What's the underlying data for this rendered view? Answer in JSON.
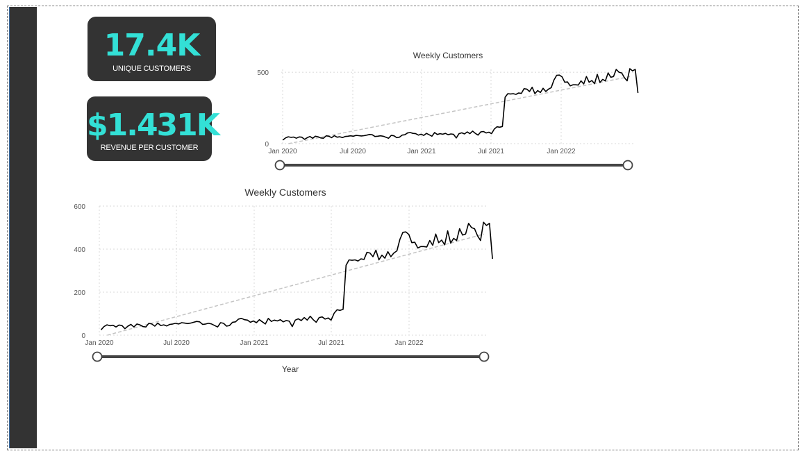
{
  "kpis": {
    "unique_customers": {
      "value": "17.4K",
      "label": "UNIQUE CUSTOMERS"
    },
    "revenue_per_customer": {
      "value": "$1.431K",
      "label": "REVENUE PER CUSTOMER"
    }
  },
  "colors": {
    "accent": "#33e0d6",
    "card_bg": "#333333",
    "sidebar": "#333333",
    "line": "#000000",
    "trend": "#c4c4c4"
  },
  "x_tick_labels": [
    "Jan 2020",
    "Jul 2020",
    "Jan 2021",
    "Jul 2021",
    "Jan 2022"
  ],
  "chart_data": [
    {
      "type": "line",
      "title": "Weekly Customers",
      "xlabel": "",
      "ylabel": "",
      "ylim": [
        0,
        520
      ],
      "yticks": [
        0,
        500
      ],
      "x_tick_labels": [
        "Jan 2020",
        "Jul 2020",
        "Jan 2021",
        "Jul 2021",
        "Jan 2022"
      ],
      "x_range": [
        "2020-01-01",
        "2022-06-30"
      ],
      "grid": true,
      "trend_line": {
        "start": [
          "2020-01-01",
          -10
        ],
        "end": [
          "2022-06-20",
          470
        ]
      },
      "slider": true
    },
    {
      "type": "line",
      "title": "Weekly Customers",
      "xlabel": "Year",
      "ylabel": "",
      "ylim": [
        0,
        600
      ],
      "yticks": [
        0,
        200,
        400,
        600
      ],
      "x_tick_labels": [
        "Jan 2020",
        "Jul 2020",
        "Jan 2021",
        "Jul 2021",
        "Jan 2022"
      ],
      "x_range": [
        "2020-01-01",
        "2022-06-30"
      ],
      "grid": true,
      "trend_line": {
        "start": [
          "2020-01-01",
          -10
        ],
        "end": [
          "2022-06-20",
          470
        ]
      },
      "slider": true
    }
  ],
  "weekly_customers": [
    [
      "2020-01-05",
      25
    ],
    [
      "2020-01-12",
      40
    ],
    [
      "2020-01-19",
      48
    ],
    [
      "2020-01-26",
      44
    ],
    [
      "2020-02-02",
      46
    ],
    [
      "2020-02-09",
      38
    ],
    [
      "2020-02-16",
      47
    ],
    [
      "2020-02-23",
      45
    ],
    [
      "2020-03-01",
      30
    ],
    [
      "2020-03-08",
      42
    ],
    [
      "2020-03-15",
      50
    ],
    [
      "2020-03-22",
      38
    ],
    [
      "2020-03-29",
      52
    ],
    [
      "2020-04-05",
      48
    ],
    [
      "2020-04-12",
      40
    ],
    [
      "2020-04-19",
      38
    ],
    [
      "2020-04-26",
      55
    ],
    [
      "2020-05-03",
      52
    ],
    [
      "2020-05-10",
      42
    ],
    [
      "2020-05-17",
      56
    ],
    [
      "2020-05-24",
      45
    ],
    [
      "2020-05-31",
      48
    ],
    [
      "2020-06-07",
      43
    ],
    [
      "2020-06-14",
      50
    ],
    [
      "2020-06-21",
      52
    ],
    [
      "2020-06-28",
      55
    ],
    [
      "2020-07-05",
      52
    ],
    [
      "2020-07-12",
      58
    ],
    [
      "2020-07-19",
      56
    ],
    [
      "2020-07-26",
      54
    ],
    [
      "2020-08-02",
      56
    ],
    [
      "2020-08-09",
      60
    ],
    [
      "2020-08-16",
      64
    ],
    [
      "2020-08-23",
      62
    ],
    [
      "2020-08-30",
      50
    ],
    [
      "2020-09-06",
      52
    ],
    [
      "2020-09-13",
      55
    ],
    [
      "2020-09-20",
      52
    ],
    [
      "2020-09-27",
      45
    ],
    [
      "2020-10-04",
      38
    ],
    [
      "2020-10-11",
      58
    ],
    [
      "2020-10-18",
      55
    ],
    [
      "2020-10-25",
      42
    ],
    [
      "2020-11-01",
      45
    ],
    [
      "2020-11-08",
      60
    ],
    [
      "2020-11-15",
      62
    ],
    [
      "2020-11-22",
      75
    ],
    [
      "2020-11-29",
      78
    ],
    [
      "2020-12-06",
      72
    ],
    [
      "2020-12-13",
      70
    ],
    [
      "2020-12-20",
      60
    ],
    [
      "2020-12-27",
      66
    ],
    [
      "2021-01-03",
      58
    ],
    [
      "2021-01-10",
      72
    ],
    [
      "2021-01-17",
      62
    ],
    [
      "2021-01-24",
      52
    ],
    [
      "2021-01-31",
      78
    ],
    [
      "2021-02-07",
      64
    ],
    [
      "2021-02-14",
      70
    ],
    [
      "2021-02-21",
      66
    ],
    [
      "2021-02-28",
      72
    ],
    [
      "2021-03-07",
      62
    ],
    [
      "2021-03-14",
      68
    ],
    [
      "2021-03-21",
      65
    ],
    [
      "2021-03-28",
      40
    ],
    [
      "2021-04-04",
      70
    ],
    [
      "2021-04-11",
      76
    ],
    [
      "2021-04-18",
      68
    ],
    [
      "2021-04-25",
      82
    ],
    [
      "2021-05-02",
      70
    ],
    [
      "2021-05-09",
      88
    ],
    [
      "2021-05-16",
      72
    ],
    [
      "2021-05-23",
      60
    ],
    [
      "2021-05-30",
      82
    ],
    [
      "2021-06-06",
      85
    ],
    [
      "2021-06-13",
      75
    ],
    [
      "2021-06-20",
      80
    ],
    [
      "2021-06-27",
      70
    ],
    [
      "2021-07-04",
      102
    ],
    [
      "2021-07-11",
      118
    ],
    [
      "2021-07-18",
      115
    ],
    [
      "2021-07-25",
      120
    ],
    [
      "2021-08-01",
      325
    ],
    [
      "2021-08-08",
      350
    ],
    [
      "2021-08-15",
      348
    ],
    [
      "2021-08-22",
      350
    ],
    [
      "2021-08-29",
      345
    ],
    [
      "2021-09-05",
      355
    ],
    [
      "2021-09-12",
      352
    ],
    [
      "2021-09-19",
      385
    ],
    [
      "2021-09-26",
      382
    ],
    [
      "2021-10-03",
      365
    ],
    [
      "2021-10-10",
      395
    ],
    [
      "2021-10-17",
      350
    ],
    [
      "2021-10-24",
      372
    ],
    [
      "2021-10-31",
      358
    ],
    [
      "2021-11-07",
      388
    ],
    [
      "2021-11-14",
      365
    ],
    [
      "2021-11-21",
      382
    ],
    [
      "2021-11-28",
      392
    ],
    [
      "2021-12-05",
      445
    ],
    [
      "2021-12-12",
      478
    ],
    [
      "2021-12-19",
      480
    ],
    [
      "2021-12-26",
      468
    ],
    [
      "2022-01-02",
      430
    ],
    [
      "2022-01-09",
      432
    ],
    [
      "2022-01-16",
      405
    ],
    [
      "2022-01-23",
      412
    ],
    [
      "2022-01-30",
      412
    ],
    [
      "2022-02-06",
      410
    ],
    [
      "2022-02-13",
      440
    ],
    [
      "2022-02-20",
      418
    ],
    [
      "2022-02-27",
      470
    ],
    [
      "2022-03-06",
      430
    ],
    [
      "2022-03-13",
      442
    ],
    [
      "2022-03-20",
      420
    ],
    [
      "2022-03-27",
      485
    ],
    [
      "2022-04-03",
      428
    ],
    [
      "2022-04-10",
      450
    ],
    [
      "2022-04-17",
      440
    ],
    [
      "2022-04-24",
      495
    ],
    [
      "2022-05-01",
      465
    ],
    [
      "2022-05-08",
      470
    ],
    [
      "2022-05-15",
      520
    ],
    [
      "2022-05-22",
      500
    ],
    [
      "2022-05-29",
      495
    ],
    [
      "2022-06-05",
      462
    ],
    [
      "2022-06-12",
      440
    ],
    [
      "2022-06-19",
      525
    ],
    [
      "2022-06-26",
      510
    ],
    [
      "2022-07-03",
      520
    ],
    [
      "2022-07-10",
      355
    ]
  ]
}
